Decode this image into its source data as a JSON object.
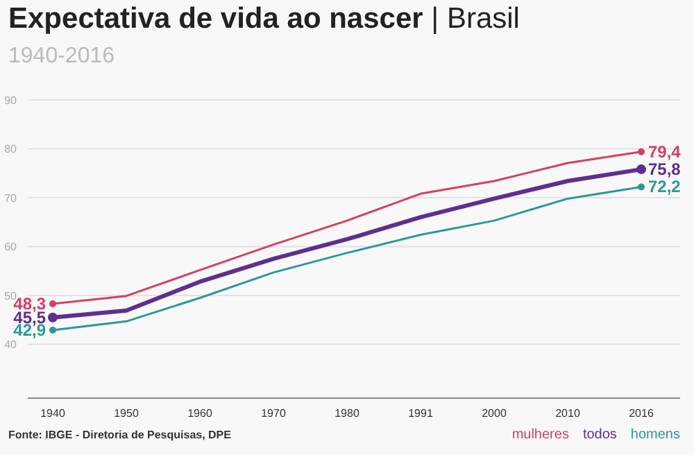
{
  "chart_data": {
    "type": "line",
    "title": "Expectativa de vida ao nascer | Brasil",
    "subtitle": "1940-2016",
    "categories": [
      "1940",
      "1950",
      "1960",
      "1970",
      "1980",
      "1991",
      "2000",
      "2010",
      "2016"
    ],
    "series": [
      {
        "name": "mulheres",
        "color": "#d6405e",
        "values": [
          48.3,
          49.9,
          55.2,
          60.4,
          65.3,
          70.8,
          73.4,
          77.1,
          79.4
        ],
        "value_labels": [
          "48,3",
          null,
          null,
          null,
          null,
          null,
          null,
          null,
          "79,4"
        ]
      },
      {
        "name": "todos",
        "color": "#5e2f8f",
        "values": [
          45.5,
          46.9,
          52.8,
          57.5,
          61.5,
          66.0,
          69.8,
          73.4,
          75.8
        ],
        "value_labels": [
          "45,5",
          null,
          null,
          null,
          null,
          null,
          null,
          null,
          "75,8"
        ]
      },
      {
        "name": "homens",
        "color": "#2b9a94",
        "values": [
          42.9,
          44.7,
          49.5,
          54.7,
          58.7,
          62.4,
          65.3,
          69.8,
          72.2
        ],
        "value_labels": [
          "42,9",
          null,
          null,
          null,
          null,
          null,
          null,
          null,
          "72,2"
        ]
      }
    ],
    "ylim": [
      29,
      90
    ],
    "yticks": [
      40,
      50,
      60,
      70,
      80,
      90
    ],
    "grid": "y",
    "legend": "bottom right",
    "annotations": [
      "Fonte: IBGE - Diretoria de Pesquisas, DPE"
    ]
  }
}
